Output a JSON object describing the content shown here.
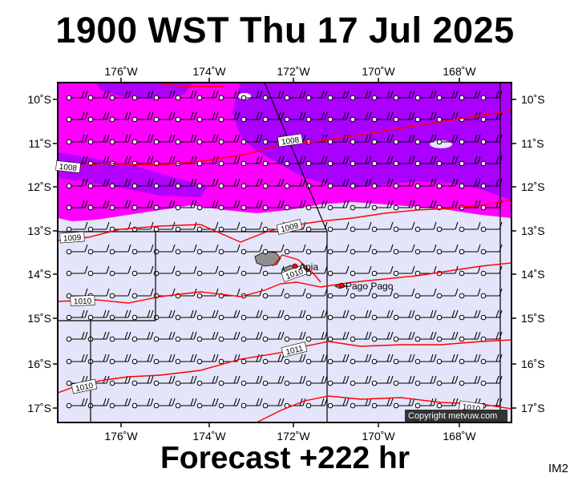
{
  "title": "1900 WST Thu 17 Jul 2025",
  "footer": "Forecast +222 hr",
  "corner_tag": "IM2",
  "copyright": "Copyright metvuw.com",
  "colors": {
    "pressure_contour": "#ff0000",
    "rain_light": "#e4e4fa",
    "rain_moderate": "#ff00ff",
    "rain_heavy": "#9b00ff",
    "land": "#8f8f8f",
    "frame": "#000000"
  },
  "axes": {
    "lon_labels": [
      "176˚W",
      "174˚W",
      "172˚W",
      "170˚W",
      "168˚W"
    ],
    "lon_values": [
      176,
      174,
      172,
      170,
      168
    ],
    "lat_labels": [
      "10˚S",
      "11˚S",
      "12˚S",
      "13˚S",
      "14˚S",
      "15˚S",
      "16˚S",
      "17˚S"
    ],
    "lat_values": [
      10,
      11,
      12,
      13,
      14,
      15,
      16,
      17
    ]
  },
  "isobar_labels": [
    "1008",
    "1008",
    "1009",
    "1009",
    "1010",
    "1010",
    "1011",
    "1010",
    "1010"
  ],
  "places": [
    "Apia",
    "Pago Pago"
  ]
}
